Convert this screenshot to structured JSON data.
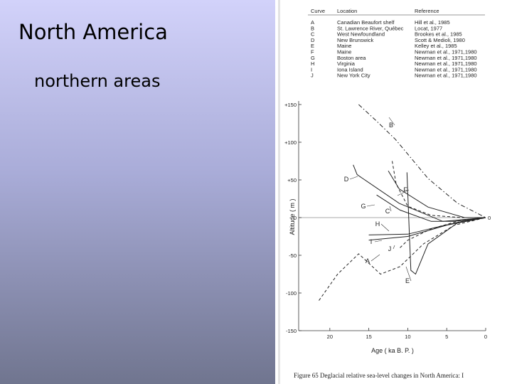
{
  "title": "North America",
  "subtitle": "northern areas",
  "figure": {
    "table": {
      "header": [
        "Curve",
        "Location",
        "Reference"
      ],
      "rows": [
        [
          "A",
          "Canadian Beaufort shelf",
          "Hill et al., 1985"
        ],
        [
          "B",
          "St. Lawrence River, Québec",
          "Locat, 1977"
        ],
        [
          "C",
          "West Newfoundland",
          "Brookes et al., 1985"
        ],
        [
          "D",
          "New Brunswick",
          "Scott & Medioli, 1980"
        ],
        [
          "E",
          "Maine",
          "Kelley et al., 1985"
        ],
        [
          "F",
          "Maine",
          "Newman et al., 1971,1980"
        ],
        [
          "G",
          "Boston area",
          "Newman et al., 1971,1980"
        ],
        [
          "H",
          "Virginia",
          "Newman et al., 1971,1980"
        ],
        [
          "I",
          "Iona Island",
          "Newman et al., 1971,1980"
        ],
        [
          "J",
          "New York City",
          "Newman et al., 1971,1980"
        ]
      ]
    },
    "caption": "Figure 65  Deglacial relative sea-level changes in North America: I",
    "chart_data": {
      "type": "line",
      "xlabel": "Age    ( ka B. P. )",
      "ylabel": "Altitude    ( m )",
      "xlim": [
        24,
        0
      ],
      "ylim": [
        -150,
        150
      ],
      "xticks": [
        20,
        15,
        10,
        5,
        0
      ],
      "yticks": [
        {
          "value": 150,
          "label": "+150"
        },
        {
          "value": 100,
          "label": "+100"
        },
        {
          "value": 50,
          "label": "+50"
        },
        0,
        -50,
        -100,
        -150
      ],
      "zero_label": "0",
      "series": [
        {
          "name": "A",
          "color": "#222",
          "style": "dashed",
          "x": [
            21.4,
            19,
            16.3,
            13.5,
            11,
            8,
            4,
            0
          ],
          "values": [
            -110,
            -75,
            -48,
            -75,
            -65,
            -35,
            -10,
            0
          ]
        },
        {
          "name": "B",
          "color": "#222",
          "style": "dash-dot",
          "x": [
            16.3,
            14,
            11.6,
            9.5,
            7.4,
            3.6,
            0
          ],
          "values": [
            150,
            128,
            104,
            78,
            52,
            19,
            0
          ]
        },
        {
          "name": "C",
          "color": "#222",
          "style": "dashed",
          "x": [
            12,
            11.5,
            10,
            7,
            3,
            0
          ],
          "values": [
            75,
            45,
            15,
            3,
            0,
            0
          ]
        },
        {
          "name": "D",
          "color": "#222",
          "style": "solid",
          "x": [
            17,
            16.5,
            11.1,
            5.5,
            0
          ],
          "values": [
            70,
            57,
            19,
            -5,
            0
          ]
        },
        {
          "name": "E",
          "color": "#222",
          "style": "solid",
          "x": [
            10.1,
            9.8,
            9.6,
            9,
            7.4,
            3.6,
            0
          ],
          "values": [
            60,
            -20,
            -70,
            -75,
            -35,
            -7,
            0
          ]
        },
        {
          "name": "F",
          "color": "#222",
          "style": "solid",
          "x": [
            12.5,
            11.1,
            7.4,
            2.7,
            0
          ],
          "values": [
            62,
            38,
            14,
            0,
            0
          ]
        },
        {
          "name": "G",
          "color": "#222",
          "style": "solid",
          "x": [
            14,
            11,
            7,
            4,
            0
          ],
          "values": [
            30,
            10,
            -5,
            -5,
            0
          ]
        },
        {
          "name": "H",
          "color": "#222",
          "style": "solid",
          "x": [
            15,
            10,
            6,
            3,
            0
          ],
          "values": [
            -23,
            -22,
            -12,
            -5,
            0
          ]
        },
        {
          "name": "I",
          "color": "#222",
          "style": "solid",
          "x": [
            15,
            10,
            5,
            0
          ],
          "values": [
            -30,
            -25,
            -10,
            0
          ]
        },
        {
          "name": "J",
          "color": "#222",
          "style": "dashed",
          "x": [
            11,
            10,
            7,
            3,
            0
          ],
          "values": [
            -40,
            -30,
            -15,
            -3,
            0
          ]
        }
      ]
    }
  }
}
